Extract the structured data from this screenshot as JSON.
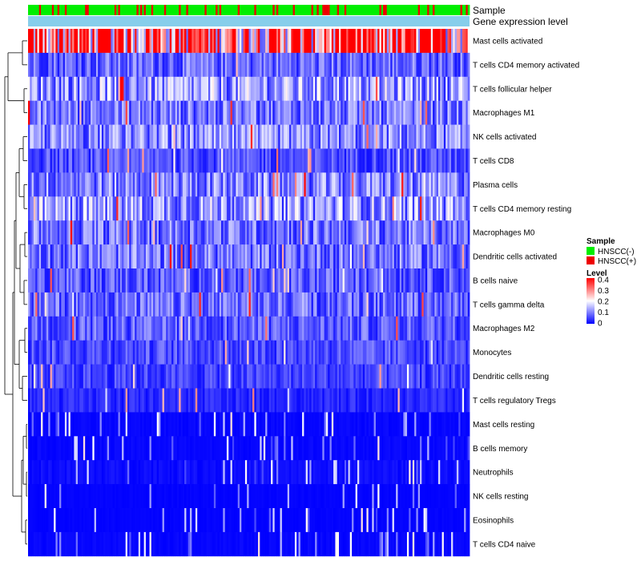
{
  "chart_data": {
    "type": "heatmap",
    "title": "",
    "annotation_rows": [
      "Sample",
      "Gene expression level"
    ],
    "row_labels": [
      "Mast cells activated",
      "T cells CD4 memory activated",
      "T cells follicular helper",
      "Macrophages M1",
      "NK cells activated",
      "T cells CD8",
      "Plasma cells",
      "T cells CD4 memory resting",
      "Macrophages M0",
      "Dendritic cells activated",
      "B cells naive",
      "T cells gamma delta",
      "Macrophages M2",
      "Monocytes",
      "Dendritic cells resting",
      "T cells regulatory  Tregs",
      "Mast cells resting",
      "B cells memory",
      "Neutrophils",
      "NK cells resting",
      "Eosinophils",
      "T cells CD4 naive"
    ],
    "row_mean_levels": [
      0.34,
      0.08,
      0.12,
      0.09,
      0.1,
      0.06,
      0.1,
      0.12,
      0.09,
      0.09,
      0.07,
      0.08,
      0.07,
      0.06,
      0.05,
      0.03,
      0.01,
      0.01,
      0.02,
      0.005,
      0.005,
      0.01
    ],
    "n_samples": 240,
    "sample_groups": {
      "categories": [
        "HNSCC(-)",
        "HNSCC(+)"
      ],
      "colors": [
        "#00ee00",
        "#ee0000"
      ],
      "proportion_positive": 0.22
    },
    "color_scale": {
      "title": "Level",
      "min": 0,
      "max": 0.4,
      "ticks": [
        "0.4",
        "0.3",
        "0.2",
        "0.1",
        "0"
      ],
      "colors": [
        "#0000ff",
        "#ffffff",
        "#ff0000"
      ],
      "midpoint": 0.2
    },
    "legend_position": "right",
    "gene_expression_bar_color": "#87ceeb"
  }
}
